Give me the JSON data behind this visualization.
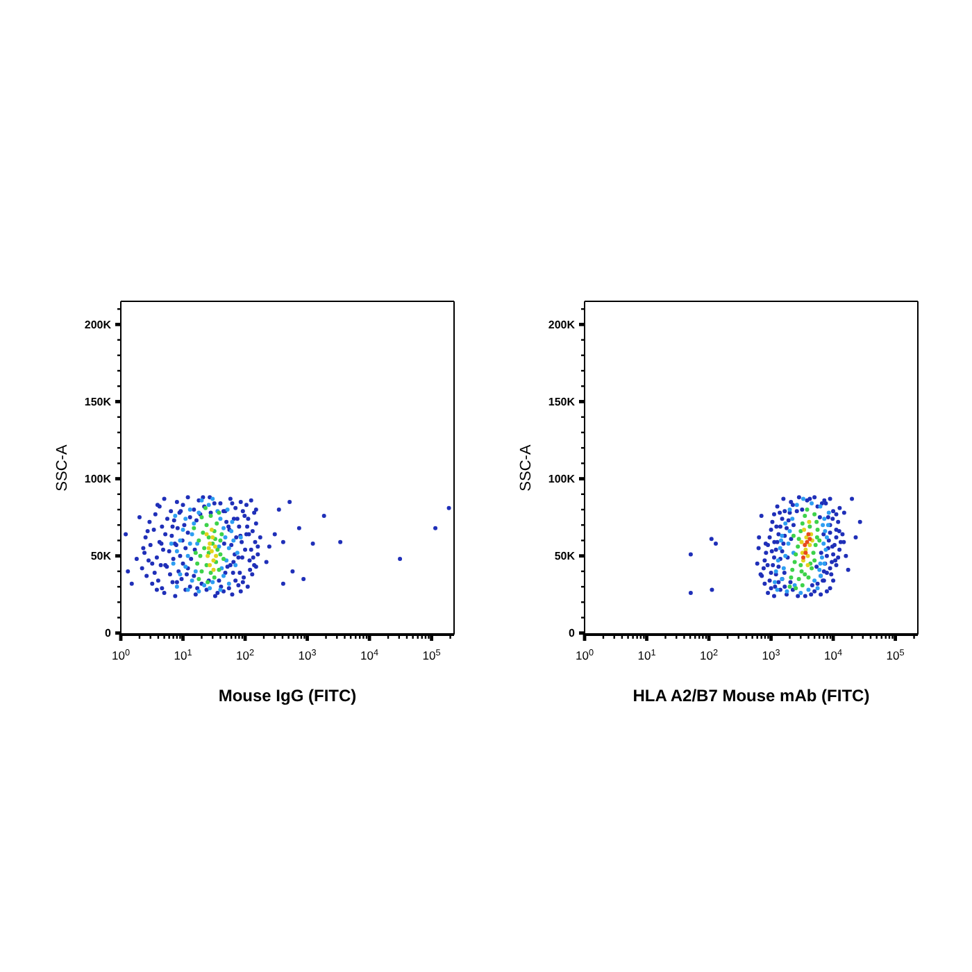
{
  "chart_data": [
    {
      "type": "scatter",
      "xlabel": "Mouse IgG (FITC)",
      "ylabel": "SSC-A",
      "log": "x",
      "marker": "circle",
      "xlim": [
        1,
        230000
      ],
      "ylim": [
        -1000,
        215000
      ],
      "xticks": [
        {
          "value": 1,
          "label": "10$^{0}$"
        },
        {
          "value": 2,
          "label": null
        },
        {
          "value": 3,
          "label": null
        },
        {
          "value": 4,
          "label": null
        },
        {
          "value": 5,
          "label": null
        },
        {
          "value": 6,
          "label": null
        },
        {
          "value": 7,
          "label": null
        },
        {
          "value": 8,
          "label": null
        },
        {
          "value": 9,
          "label": null
        },
        {
          "value": 10,
          "label": "10$^{1}$"
        },
        {
          "value": 20,
          "label": null
        },
        {
          "value": 30,
          "label": null
        },
        {
          "value": 40,
          "label": null
        },
        {
          "value": 50,
          "label": null
        },
        {
          "value": 60,
          "label": null
        },
        {
          "value": 70,
          "label": null
        },
        {
          "value": 80,
          "label": null
        },
        {
          "value": 90,
          "label": null
        },
        {
          "value": 100,
          "label": "10$^{2}$"
        },
        {
          "value": 200,
          "label": null
        },
        {
          "value": 300,
          "label": null
        },
        {
          "value": 400,
          "label": null
        },
        {
          "value": 500,
          "label": null
        },
        {
          "value": 600,
          "label": null
        },
        {
          "value": 700,
          "label": null
        },
        {
          "value": 800,
          "label": null
        },
        {
          "value": 900,
          "label": null
        },
        {
          "value": 1000,
          "label": "10$^{3}$"
        },
        {
          "value": 2000,
          "label": null
        },
        {
          "value": 3000,
          "label": null
        },
        {
          "value": 4000,
          "label": null
        },
        {
          "value": 5000,
          "label": null
        },
        {
          "value": 6000,
          "label": null
        },
        {
          "value": 7000,
          "label": null
        },
        {
          "value": 8000,
          "label": null
        },
        {
          "value": 9000,
          "label": null
        },
        {
          "value": 10000,
          "label": "10$^{4}$"
        },
        {
          "value": 20000,
          "label": null
        },
        {
          "value": 30000,
          "label": null
        },
        {
          "value": 40000,
          "label": null
        },
        {
          "value": 50000,
          "label": null
        },
        {
          "value": 60000,
          "label": null
        },
        {
          "value": 70000,
          "label": null
        },
        {
          "value": 80000,
          "label": null
        },
        {
          "value": 90000,
          "label": null
        },
        {
          "value": 100000,
          "label": "10$^{5}$"
        },
        {
          "value": 200000,
          "label": null
        }
      ],
      "yticks": [
        0,
        {
          "value": 10000,
          "label": null
        },
        {
          "value": 20000,
          "label": null
        },
        {
          "value": 30000,
          "label": null
        },
        {
          "value": 40000,
          "label": null
        },
        {
          "value": 50000,
          "label": "50K"
        },
        {
          "value": 60000,
          "label": null
        },
        {
          "value": 70000,
          "label": null
        },
        {
          "value": 80000,
          "label": null
        },
        {
          "value": 90000,
          "label": null
        },
        {
          "value": 100000,
          "label": "100K"
        },
        {
          "value": 110000,
          "label": null
        },
        {
          "value": 120000,
          "label": null
        },
        {
          "value": 130000,
          "label": null
        },
        {
          "value": 140000,
          "label": null
        },
        {
          "value": 150000,
          "label": "150K"
        },
        {
          "value": 160000,
          "label": null
        },
        {
          "value": 170000,
          "label": null
        },
        {
          "value": 180000,
          "label": null
        },
        {
          "value": 190000,
          "label": null
        },
        {
          "value": 200000,
          "label": "200K"
        },
        {
          "value": 210000,
          "label": null
        }
      ],
      "series": [
        {
          "color": "#1f2fb8",
          "x": [
            5,
            7.5,
            11,
            16,
            24,
            33,
            45,
            62,
            85,
            3.2,
            4.6,
            8,
            13,
            20,
            38,
            55,
            78,
            110,
            2.6,
            4,
            6.2,
            9.5,
            15,
            48,
            70,
            95,
            130,
            2.2,
            3.5,
            5.5,
            8.5,
            12,
            58,
            82,
            120,
            150,
            2.8,
            4.4,
            7,
            10,
            65,
            90,
            140,
            2.4,
            3.8,
            6,
            9,
            68,
            100,
            135,
            3,
            4.8,
            7.4,
            11,
            60,
            88,
            125,
            160,
            2.5,
            4.2,
            6.6,
            9.8,
            72,
            105,
            145,
            3.4,
            5.2,
            8.2,
            12,
            56,
            80,
            115,
            2.9,
            4.6,
            7.2,
            10.5,
            50,
            75,
            108,
            150,
            3.6,
            5.6,
            8.8,
            13,
            19,
            45,
            66,
            98,
            140,
            4.2,
            6.4,
            10,
            15,
            22,
            32,
            48,
            70,
            105,
            150,
            5,
            8,
            12,
            18,
            27,
            40,
            58,
            85,
            125,
            1.2,
            1.8,
            2,
            1.5,
            1.3,
            350,
            520,
            740,
            410,
            580,
            410,
            870,
            1230,
            1860,
            3400,
            31000,
            115000,
            190000,
            245,
            300,
            220,
            3.8,
            6.8,
            11.5,
            17,
            26,
            41,
            64,
            92,
            5.2,
            13.5,
            52,
            78,
            118,
            4.5,
            15.5,
            46,
            84,
            132,
            6.8,
            16.5,
            54,
            92,
            3.9,
            9.2,
            28,
            62,
            112,
            2.7,
            2.3,
            3.2,
            160,
            175,
            7.8,
            36,
            21
          ],
          "values": [
            26000,
            24000,
            28000,
            25000,
            28000,
            24000,
            27000,
            25000,
            27000,
            32000,
            29000,
            33000,
            30000,
            32000,
            34000,
            29000,
            31000,
            30000,
            37000,
            34000,
            38000,
            35000,
            37000,
            39000,
            34000,
            36000,
            38000,
            42000,
            39000,
            43000,
            40000,
            42000,
            44000,
            39000,
            41000,
            43000,
            47000,
            44000,
            48000,
            45000,
            46000,
            49000,
            44000,
            52000,
            49000,
            53000,
            50000,
            51000,
            54000,
            49000,
            57000,
            54000,
            58000,
            55000,
            57000,
            59000,
            54000,
            56000,
            62000,
            59000,
            63000,
            60000,
            62000,
            64000,
            59000,
            67000,
            64000,
            68000,
            65000,
            67000,
            69000,
            64000,
            72000,
            69000,
            73000,
            70000,
            72000,
            74000,
            69000,
            71000,
            77000,
            74000,
            78000,
            75000,
            77000,
            79000,
            74000,
            76000,
            78000,
            82000,
            79000,
            83000,
            80000,
            82000,
            84000,
            79000,
            81000,
            83000,
            80000,
            87000,
            85000,
            88000,
            86000,
            88000,
            84000,
            87000,
            85000,
            86000,
            64000,
            48000,
            75000,
            32000,
            40000,
            80000,
            85000,
            68000,
            59000,
            40000,
            32000,
            35000,
            58000,
            76000,
            59000,
            48000,
            68000,
            81000,
            56000,
            64000,
            46000,
            28000,
            33000,
            38000,
            29000,
            34000,
            30000,
            39000,
            33000,
            44000,
            48000,
            43000,
            49000,
            47000,
            58000,
            54000,
            58000,
            63000,
            66000,
            69000,
            73000,
            69000,
            79000,
            83000,
            79000,
            78000,
            84000,
            74000,
            66000,
            55000,
            45000,
            51000,
            62000,
            57000,
            26000,
            88000
          ]
        },
        {
          "color": "#2e9ef2",
          "x": [
            8,
            12,
            18,
            27,
            40,
            55,
            9,
            14,
            30,
            45,
            70,
            7,
            11,
            50,
            75,
            8,
            12,
            55,
            9,
            13,
            48,
            65,
            10,
            14,
            45,
            62,
            11,
            15,
            40,
            13,
            18,
            26,
            36,
            52,
            20,
            30,
            16,
            42,
            60,
            22,
            17,
            38,
            6.5,
            85,
            7.5
          ],
          "values": [
            30000,
            28000,
            27000,
            29000,
            28000,
            32000,
            38000,
            34000,
            33000,
            37000,
            44000,
            45000,
            43000,
            47000,
            52000,
            53000,
            50000,
            55000,
            60000,
            58000,
            62000,
            60000,
            67000,
            64000,
            68000,
            72000,
            74000,
            71000,
            74000,
            80000,
            78000,
            83000,
            79000,
            80000,
            86000,
            87000,
            40000,
            42000,
            66000,
            31000,
            58000,
            56000,
            58000,
            62000,
            76000
          ]
        },
        {
          "color": "#3dd24a",
          "x": [
            18,
            25,
            32,
            20,
            28,
            38,
            17,
            24,
            34,
            19,
            40,
            22,
            36,
            18,
            26,
            40,
            21,
            32,
            24,
            35,
            20,
            28,
            38,
            23,
            45,
            16,
            30,
            42,
            15,
            26,
            33
          ],
          "values": [
            35000,
            33000,
            36000,
            40000,
            39000,
            41000,
            45000,
            44000,
            46000,
            50000,
            51000,
            55000,
            54000,
            60000,
            62000,
            60000,
            65000,
            66000,
            70000,
            71000,
            75000,
            76000,
            78000,
            81000,
            48000,
            52000,
            58000,
            64000,
            68000,
            52000,
            61000
          ]
        },
        {
          "color": "#e3d31f",
          "x": [
            27,
            31,
            25,
            29,
            33,
            27,
            30,
            24,
            29,
            34,
            26,
            31
          ],
          "values": [
            44000,
            47000,
            50000,
            53000,
            56000,
            58000,
            62000,
            64000,
            67000,
            50000,
            55000,
            41000
          ]
        }
      ]
    },
    {
      "type": "scatter",
      "xlabel": "HLA A2/B7 Mouse mAb (FITC)",
      "ylabel": "SSC-A",
      "log": "x",
      "marker": "circle",
      "xlim": [
        1,
        230000
      ],
      "ylim": [
        -1000,
        215000
      ],
      "xticks": [
        {
          "value": 1,
          "label": "10$^{0}$"
        },
        {
          "value": 2,
          "label": null
        },
        {
          "value": 3,
          "label": null
        },
        {
          "value": 4,
          "label": null
        },
        {
          "value": 5,
          "label": null
        },
        {
          "value": 6,
          "label": null
        },
        {
          "value": 7,
          "label": null
        },
        {
          "value": 8,
          "label": null
        },
        {
          "value": 9,
          "label": null
        },
        {
          "value": 10,
          "label": "10$^{1}$"
        },
        {
          "value": 20,
          "label": null
        },
        {
          "value": 30,
          "label": null
        },
        {
          "value": 40,
          "label": null
        },
        {
          "value": 50,
          "label": null
        },
        {
          "value": 60,
          "label": null
        },
        {
          "value": 70,
          "label": null
        },
        {
          "value": 80,
          "label": null
        },
        {
          "value": 90,
          "label": null
        },
        {
          "value": 100,
          "label": "10$^{2}$"
        },
        {
          "value": 200,
          "label": null
        },
        {
          "value": 300,
          "label": null
        },
        {
          "value": 400,
          "label": null
        },
        {
          "value": 500,
          "label": null
        },
        {
          "value": 600,
          "label": null
        },
        {
          "value": 700,
          "label": null
        },
        {
          "value": 800,
          "label": null
        },
        {
          "value": 900,
          "label": null
        },
        {
          "value": 1000,
          "label": "10$^{3}$"
        },
        {
          "value": 2000,
          "label": null
        },
        {
          "value": 3000,
          "label": null
        },
        {
          "value": 4000,
          "label": null
        },
        {
          "value": 5000,
          "label": null
        },
        {
          "value": 6000,
          "label": null
        },
        {
          "value": 7000,
          "label": null
        },
        {
          "value": 8000,
          "label": null
        },
        {
          "value": 9000,
          "label": null
        },
        {
          "value": 10000,
          "label": "10$^{4}$"
        },
        {
          "value": 20000,
          "label": null
        },
        {
          "value": 30000,
          "label": null
        },
        {
          "value": 40000,
          "label": null
        },
        {
          "value": 50000,
          "label": null
        },
        {
          "value": 60000,
          "label": null
        },
        {
          "value": 70000,
          "label": null
        },
        {
          "value": 80000,
          "label": null
        },
        {
          "value": 90000,
          "label": null
        },
        {
          "value": 100000,
          "label": "10$^{5}$"
        },
        {
          "value": 200000,
          "label": null
        }
      ],
      "yticks": [
        0,
        {
          "value": 10000,
          "label": null
        },
        {
          "value": 20000,
          "label": null
        },
        {
          "value": 30000,
          "label": null
        },
        {
          "value": 40000,
          "label": null
        },
        {
          "value": 50000,
          "label": "50K"
        },
        {
          "value": 60000,
          "label": null
        },
        {
          "value": 70000,
          "label": null
        },
        {
          "value": 80000,
          "label": null
        },
        {
          "value": 90000,
          "label": null
        },
        {
          "value": 100000,
          "label": "100K"
        },
        {
          "value": 110000,
          "label": null
        },
        {
          "value": 120000,
          "label": null
        },
        {
          "value": 130000,
          "label": null
        },
        {
          "value": 140000,
          "label": null
        },
        {
          "value": 150000,
          "label": "150K"
        },
        {
          "value": 160000,
          "label": null
        },
        {
          "value": 170000,
          "label": null
        },
        {
          "value": 180000,
          "label": null
        },
        {
          "value": 190000,
          "label": null
        },
        {
          "value": 200000,
          "label": "200K"
        },
        {
          "value": 210000,
          "label": null
        }
      ],
      "series": [
        {
          "color": "#1f2fb8",
          "x": [
            890,
            1120,
            1410,
            1780,
            2240,
            3550,
            5000,
            6300,
            7900,
            790,
            1000,
            1320,
            1660,
            5600,
            7100,
            8900,
            710,
            950,
            1200,
            1510,
            6300,
            7900,
            10000,
            760,
            1000,
            1320,
            7100,
            8900,
            11200,
            790,
            1070,
            1410,
            7400,
            9500,
            12000,
            830,
            1120,
            1510,
            7900,
            10000,
            12600,
            890,
            1200,
            1580,
            8300,
            10500,
            13200,
            950,
            1260,
            1660,
            8500,
            11200,
            14100,
            1000,
            1320,
            1780,
            8900,
            11200,
            1050,
            1410,
            1910,
            8900,
            12000,
            1120,
            1510,
            2000,
            8300,
            11200,
            1260,
            1660,
            2240,
            3160,
            5600,
            7600,
            10000,
            1580,
            2090,
            2820,
            3800,
            5000,
            6600,
            8900,
            51,
            51,
            110,
            129,
            112,
            20000,
            27000,
            23000,
            17400,
            640,
            600,
            700,
            630,
            680,
            16000,
            15000,
            1160,
            2050,
            4600,
            6800,
            9300,
            880,
            1640,
            5400,
            10800,
            1030,
            1850,
            6400,
            9700,
            1130,
            2100,
            7000,
            12500,
            1220,
            2300,
            6100,
            9800,
            1380,
            2600,
            4200,
            7200,
            12700,
            2700,
            4400,
            820,
            14800
          ],
          "values": [
            26000,
            24000,
            28000,
            25000,
            28000,
            24000,
            27000,
            25000,
            27000,
            32000,
            29000,
            33000,
            30000,
            32000,
            34000,
            29000,
            37000,
            34000,
            38000,
            35000,
            37000,
            39000,
            34000,
            42000,
            39000,
            43000,
            40000,
            42000,
            44000,
            47000,
            44000,
            48000,
            45000,
            46000,
            49000,
            52000,
            49000,
            53000,
            50000,
            51000,
            54000,
            57000,
            54000,
            58000,
            55000,
            57000,
            59000,
            62000,
            59000,
            63000,
            60000,
            62000,
            64000,
            67000,
            64000,
            68000,
            65000,
            67000,
            72000,
            69000,
            73000,
            70000,
            72000,
            77000,
            74000,
            78000,
            75000,
            77000,
            82000,
            79000,
            83000,
            80000,
            82000,
            84000,
            79000,
            87000,
            85000,
            88000,
            86000,
            88000,
            84000,
            87000,
            51000,
            26000,
            61000,
            58000,
            28000,
            87000,
            72000,
            62000,
            41000,
            62000,
            45000,
            76000,
            55000,
            38000,
            50000,
            78000,
            30000,
            33000,
            31000,
            34000,
            38000,
            44000,
            39000,
            43000,
            47000,
            53000,
            49000,
            52000,
            56000,
            59000,
            61000,
            64000,
            66000,
            69000,
            70000,
            75000,
            74000,
            78000,
            79000,
            87000,
            86000,
            81000,
            24000,
            25000,
            58000,
            59000
          ]
        },
        {
          "color": "#2e9ef2",
          "x": [
            1260,
            1800,
            4000,
            5600,
            1150,
            1500,
            5000,
            6300,
            1200,
            1600,
            6000,
            7200,
            1300,
            1700,
            6600,
            7600,
            1400,
            1900,
            7000,
            7900,
            1500,
            2000,
            7400,
            8300,
            1700,
            2200,
            7200,
            8500,
            2000,
            2600,
            4500,
            6200,
            3300,
            2400,
            3000,
            1450,
            6800,
            2300,
            6200
          ],
          "values": [
            28000,
            27000,
            28000,
            29000,
            33000,
            35000,
            34000,
            37000,
            40000,
            42000,
            41000,
            45000,
            47000,
            50000,
            49000,
            54000,
            55000,
            58000,
            58000,
            62000,
            63000,
            66000,
            66000,
            70000,
            71000,
            74000,
            74000,
            78000,
            80000,
            83000,
            84000,
            82000,
            87000,
            31000,
            26000,
            60000,
            70000,
            52000,
            45000
          ]
        },
        {
          "color": "#3dd24a",
          "x": [
            2000,
            2500,
            3200,
            2100,
            2800,
            4000,
            2200,
            3100,
            4500,
            2400,
            5000,
            2500,
            4800,
            2700,
            5200,
            2800,
            5500,
            3000,
            5600,
            3200,
            5400,
            3500,
            5000,
            3800,
            4300,
            3500,
            2300,
            6000,
            4200,
            3000
          ],
          "values": [
            30000,
            29000,
            31000,
            36000,
            35000,
            36000,
            41000,
            40000,
            42000,
            46000,
            47000,
            51000,
            52000,
            56000,
            57000,
            61000,
            62000,
            66000,
            67000,
            71000,
            72000,
            76000,
            77000,
            80000,
            45000,
            38000,
            63000,
            60000,
            69000,
            44000
          ]
        },
        {
          "color": "#e3d31f",
          "x": [
            3300,
            3900,
            3600,
            4200,
            3100,
            3700,
            4400,
            3400,
            4100,
            3200,
            4600,
            3900
          ],
          "values": [
            47000,
            50000,
            54000,
            57000,
            59000,
            62000,
            64000,
            67000,
            72000,
            52000,
            60000,
            44000
          ]
        },
        {
          "color": "#e84a1c",
          "x": [
            3800,
            4200,
            3500,
            3300,
            4000,
            3600
          ],
          "values": [
            59000,
            61000,
            57000,
            49000,
            64000,
            52000
          ]
        }
      ]
    }
  ]
}
